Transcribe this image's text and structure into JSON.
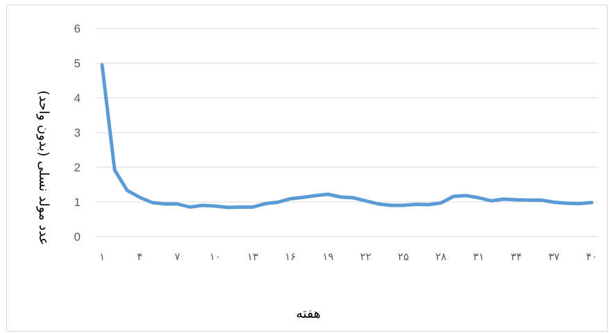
{
  "chart_data": {
    "type": "line",
    "title": "",
    "xlabel": "هفته",
    "ylabel": "عدد مولد نسلی (بدون واحد)",
    "ylim": [
      0,
      6
    ],
    "yticks": [
      "0",
      "1",
      "2",
      "3",
      "4",
      "5",
      "6"
    ],
    "xtick_labels": [
      "۱",
      "۴",
      "۷",
      "۱۰",
      "۱۳",
      "۱۶",
      "۱۹",
      "۲۲",
      "۲۵",
      "۲۸",
      "۳۱",
      "۳۴",
      "۳۷",
      "۴۰"
    ],
    "grid": true,
    "line_color": "#5b9bd5",
    "series": [
      {
        "x": [
          1,
          2,
          3,
          4,
          5,
          6,
          7,
          8,
          9,
          10,
          11,
          12,
          13,
          14,
          15,
          16,
          17,
          18,
          19,
          20,
          21,
          22,
          23,
          24,
          25,
          26,
          27,
          28,
          29,
          30,
          31,
          32,
          33,
          34,
          35,
          36,
          37,
          38,
          39,
          40
        ],
        "values": [
          4.95,
          1.92,
          1.33,
          1.13,
          0.98,
          0.94,
          0.94,
          0.85,
          0.9,
          0.88,
          0.84,
          0.85,
          0.85,
          0.95,
          0.99,
          1.09,
          1.13,
          1.18,
          1.22,
          1.14,
          1.12,
          1.03,
          0.94,
          0.9,
          0.9,
          0.93,
          0.92,
          0.97,
          1.16,
          1.18,
          1.12,
          1.03,
          1.08,
          1.06,
          1.05,
          1.05,
          0.99,
          0.96,
          0.95,
          0.98
        ]
      }
    ]
  }
}
